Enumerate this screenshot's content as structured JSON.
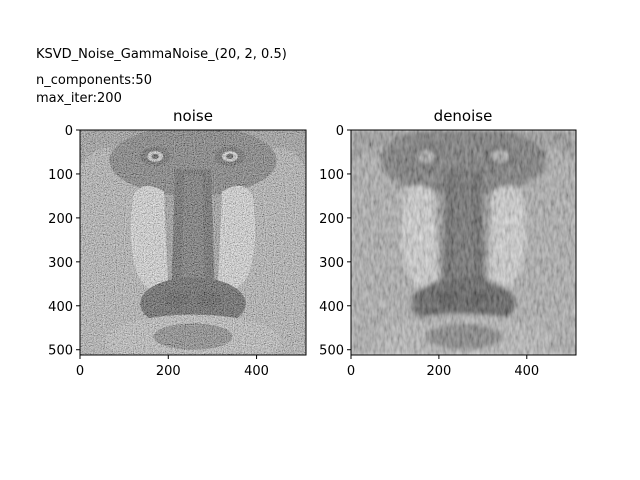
{
  "figure": {
    "suptitle": "KSVD_Noise_GammaNoise_(20, 2, 0.5)",
    "params": [
      "n_components:50",
      "max_iter:200"
    ]
  },
  "panels": [
    {
      "title": "noise",
      "image_icon": "baboon-photo-noisy",
      "x_ticks": [
        0,
        200,
        400
      ],
      "y_ticks": [
        0,
        100,
        200,
        300,
        400,
        500
      ],
      "extent": [
        0,
        512
      ]
    },
    {
      "title": "denoise",
      "image_icon": "baboon-photo-denoised",
      "x_ticks": [
        0,
        200,
        400
      ],
      "y_ticks": [
        0,
        100,
        200,
        300,
        400,
        500
      ],
      "extent": [
        0,
        512
      ]
    }
  ]
}
